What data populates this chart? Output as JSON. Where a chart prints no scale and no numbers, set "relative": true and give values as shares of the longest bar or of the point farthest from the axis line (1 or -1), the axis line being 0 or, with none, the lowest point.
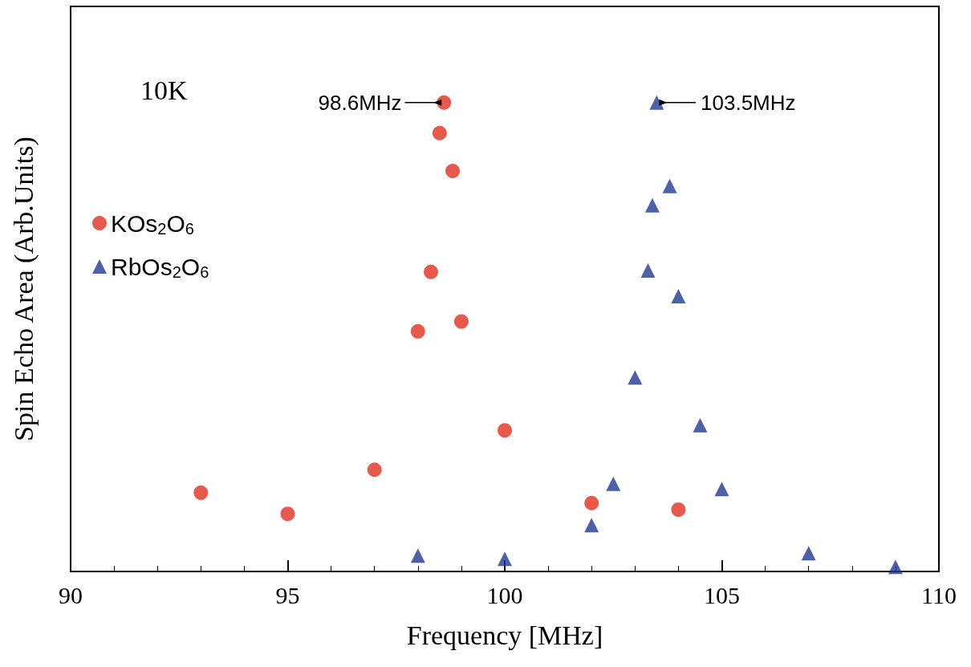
{
  "chart_data": {
    "type": "scatter",
    "relative": true,
    "xlabel": "Frequency [MHz]",
    "ylabel": "Spin Echo Area (Arb.Units)",
    "xlim": [
      90,
      110
    ],
    "xticks": [
      90,
      95,
      100,
      105,
      110
    ],
    "legend": "top left",
    "grid": false,
    "series": [
      {
        "name": "KOs$_{2}$O$_{6}$",
        "color": "#e0301e",
        "marker": "circle",
        "x": [
          93,
          95,
          97,
          98,
          98.3,
          98.5,
          98.6,
          98.8,
          99,
          100,
          102,
          104
        ],
        "values": [
          0.168,
          0.123,
          0.217,
          0.512,
          0.639,
          0.935,
          1,
          0.854,
          0.533,
          0.301,
          0.146,
          0.132
        ]
      },
      {
        "name": "RbOs$_{2}$O$_{6}$",
        "color": "#1f3a93",
        "marker": "triangle",
        "x": [
          98,
          100,
          102,
          102.5,
          103,
          103.3,
          103.4,
          103.5,
          103.8,
          104,
          104.5,
          105,
          107,
          109
        ],
        "values": [
          0.034,
          0.027,
          0.099,
          0.187,
          0.414,
          0.642,
          0.781,
          1,
          0.822,
          0.587,
          0.312,
          0.176,
          0.039,
          0.01
        ]
      }
    ],
    "annotations": [
      "10K",
      {
        "text": "98.6MHz",
        "x": 98.6,
        "y": 1
      },
      {
        "text": "103.5MHz",
        "x": 103.5,
        "y": 1
      }
    ]
  }
}
